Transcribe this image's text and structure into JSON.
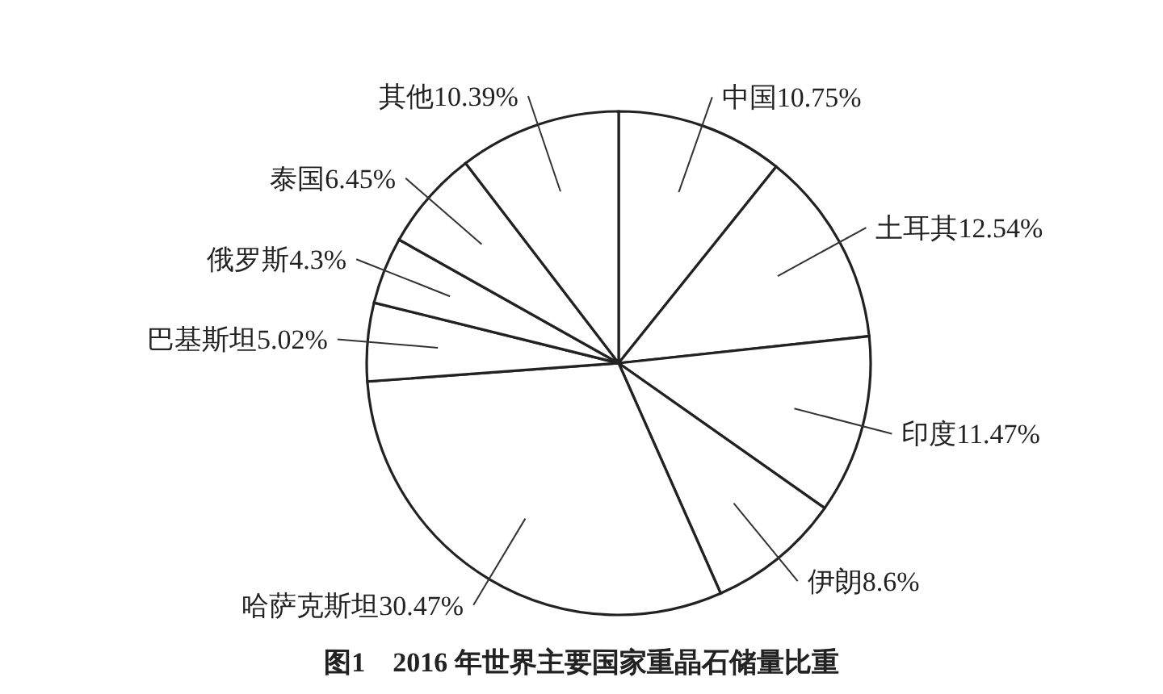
{
  "chart_data": {
    "type": "pie",
    "title": "图1　2016 年世界主要国家重晶石储量比重",
    "categories": [
      "中国",
      "土耳其",
      "印度",
      "伊朗",
      "哈萨克斯坦",
      "巴基斯坦",
      "俄罗斯",
      "泰国",
      "其他"
    ],
    "values": [
      10.75,
      12.54,
      11.47,
      8.6,
      30.47,
      5.02,
      4.3,
      6.45,
      10.39
    ],
    "value_labels": [
      "10.75%",
      "12.54%",
      "11.47%",
      "8.6%",
      "30.47%",
      "5.02%",
      "4.3%",
      "6.45%",
      "10.39%"
    ],
    "colors": [
      "#ffffff",
      "#ffffff",
      "#ffffff",
      "#ffffff",
      "#ffffff",
      "#ffffff",
      "#ffffff",
      "#ffffff",
      "#ffffff"
    ]
  }
}
